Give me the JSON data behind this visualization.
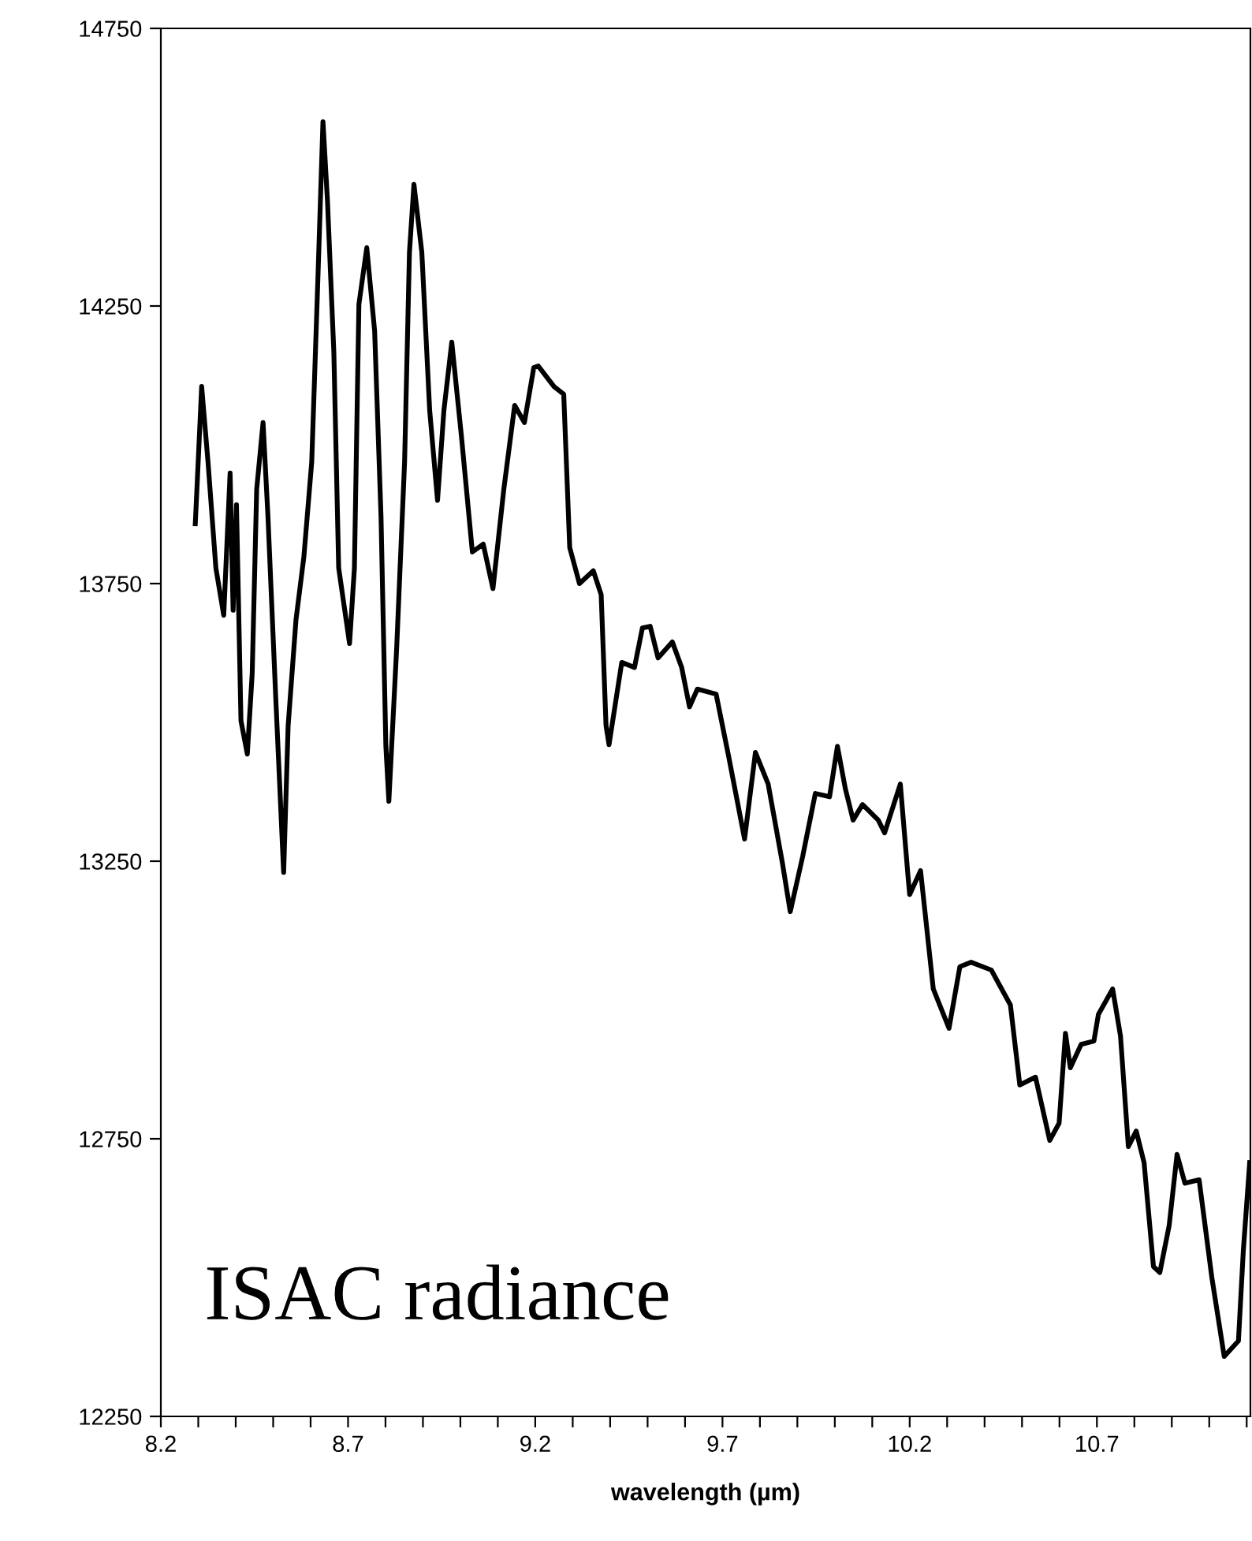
{
  "chart_data": {
    "type": "line",
    "xlabel": "wavelength (µm)",
    "annotations": [
      "ISAC radiance"
    ],
    "xlim": [
      8.2,
      11.11
    ],
    "ylim": [
      12250,
      14750
    ],
    "xticks": [
      8.2,
      {
        "value": 8.3,
        "label": null
      },
      {
        "value": 8.4,
        "label": null
      },
      {
        "value": 8.5,
        "label": null
      },
      {
        "value": 8.6,
        "label": null
      },
      8.7,
      {
        "value": 8.8,
        "label": null
      },
      {
        "value": 8.9,
        "label": null
      },
      {
        "value": 9.0,
        "label": null
      },
      {
        "value": 9.1,
        "label": null
      },
      9.2,
      {
        "value": 9.3,
        "label": null
      },
      {
        "value": 9.4,
        "label": null
      },
      {
        "value": 9.5,
        "label": null
      },
      {
        "value": 9.6,
        "label": null
      },
      9.7,
      {
        "value": 9.8,
        "label": null
      },
      {
        "value": 9.9,
        "label": null
      },
      {
        "value": 10.0,
        "label": null
      },
      {
        "value": 10.1,
        "label": null
      },
      10.2,
      {
        "value": 10.3,
        "label": null
      },
      {
        "value": 10.4,
        "label": null
      },
      {
        "value": 10.5,
        "label": null
      },
      {
        "value": 10.6,
        "label": null
      },
      10.7,
      {
        "value": 10.8,
        "label": null
      },
      {
        "value": 10.9,
        "label": null
      },
      {
        "value": 11.0,
        "label": null
      },
      {
        "value": 11.1,
        "label": null
      }
    ],
    "yticks": [
      12250,
      12750,
      13250,
      13750,
      14250,
      14750
    ],
    "grid": false,
    "legend": false,
    "marker": "none",
    "line_style": "solid",
    "series": [
      {
        "color": "#000000",
        "x": [
          8.292,
          8.297,
          8.309,
          8.326,
          8.347,
          8.368,
          8.385,
          8.393,
          8.402,
          8.414,
          8.431,
          8.444,
          8.456,
          8.473,
          8.486,
          8.507,
          8.528,
          8.54,
          8.561,
          8.582,
          8.603,
          8.62,
          8.633,
          8.645,
          8.662,
          8.675,
          8.704,
          8.717,
          8.729,
          8.75,
          8.771,
          8.788,
          8.801,
          8.809,
          8.83,
          8.851,
          8.864,
          8.876,
          8.897,
          8.918,
          8.939,
          8.956,
          8.977,
          9.003,
          9.032,
          9.061,
          9.087,
          9.116,
          9.145,
          9.171,
          9.196,
          9.208,
          9.25,
          9.276,
          9.292,
          9.318,
          9.355,
          9.376,
          9.389,
          9.397,
          9.431,
          9.465,
          9.486,
          9.507,
          9.528,
          9.566,
          9.591,
          9.612,
          9.633,
          9.683,
          9.717,
          9.759,
          9.788,
          9.822,
          9.86,
          9.881,
          9.914,
          9.948,
          9.986,
          10.007,
          10.028,
          10.049,
          10.074,
          10.116,
          10.133,
          10.175,
          10.196,
          10.2,
          10.229,
          10.263,
          10.305,
          10.334,
          10.364,
          10.418,
          10.469,
          10.494,
          10.536,
          10.574,
          10.599,
          10.616,
          10.629,
          10.658,
          10.692,
          10.704,
          10.742,
          10.763,
          10.784,
          10.805,
          10.826,
          10.851,
          10.868,
          10.893,
          10.914,
          10.935,
          10.973,
          11.007,
          11.04,
          11.078,
          11.091,
          11.108
        ],
        "values": [
          13858,
          13929,
          14105,
          13969,
          13778,
          13693,
          13949,
          13702,
          13892,
          13503,
          13443,
          13588,
          13920,
          14040,
          13872,
          13543,
          13230,
          13494,
          13685,
          13798,
          13969,
          14310,
          14582,
          14440,
          14168,
          13778,
          13642,
          13778,
          14253,
          14355,
          14205,
          13872,
          13457,
          13358,
          13636,
          13969,
          14347,
          14469,
          14347,
          14062,
          13900,
          14062,
          14185,
          14014,
          13807,
          13821,
          13741,
          13920,
          14071,
          14040,
          14139,
          14142,
          14105,
          14091,
          13815,
          13750,
          13773,
          13730,
          13494,
          13460,
          13608,
          13599,
          13670,
          13673,
          13616,
          13645,
          13599,
          13528,
          13560,
          13551,
          13437,
          13290,
          13446,
          13389,
          13247,
          13159,
          13258,
          13372,
          13366,
          13457,
          13381,
          13324,
          13352,
          13324,
          13301,
          13389,
          13219,
          13190,
          13233,
          13020,
          12949,
          13060,
          13068,
          13054,
          12991,
          12847,
          12861,
          12747,
          12778,
          12940,
          12878,
          12920,
          12926,
          12974,
          13020,
          12935,
          12736,
          12764,
          12707,
          12520,
          12509,
          12594,
          12722,
          12670,
          12676,
          12500,
          12358,
          12386,
          12548,
          12707
        ]
      }
    ]
  }
}
